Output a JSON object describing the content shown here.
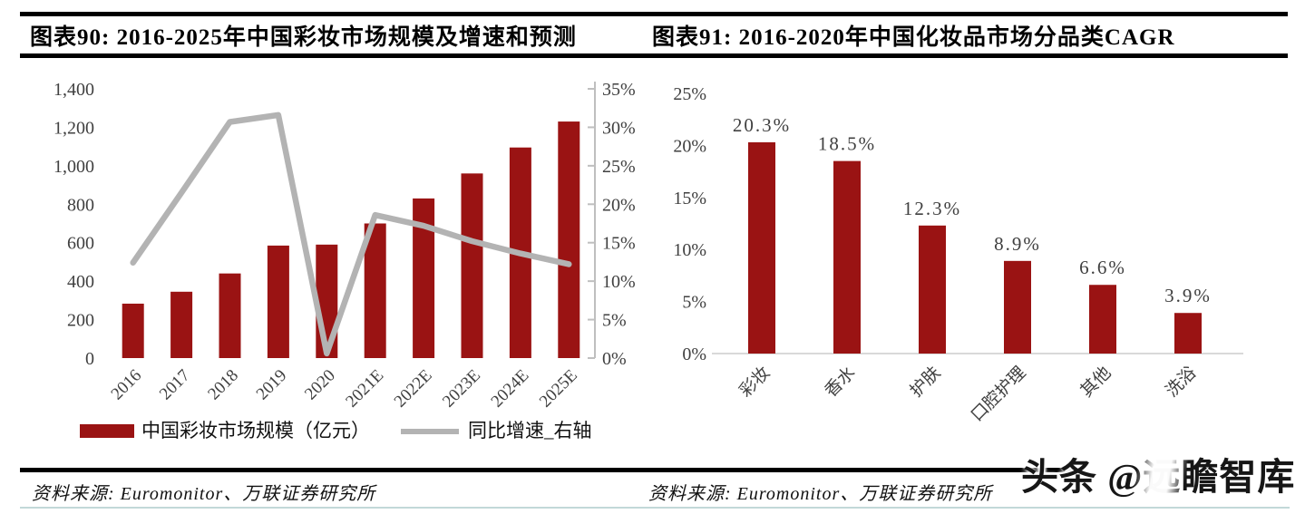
{
  "header": {
    "left_title": "图表90:  2016-2025年中国彩妆市场规模及增速和预测",
    "right_title": "图表91:  2016-2020年中国化妆品市场分品类CAGR"
  },
  "colors": {
    "bar_red": "#9A1313",
    "line_gray": "#B3B3B3",
    "axis_text": "#404040",
    "axis_line_gray": "#BFBFBF",
    "baseline_gray": "#D9D9D9",
    "divider_black": "#000000",
    "teal_rule": "#AECBCB"
  },
  "chart_data": [
    {
      "type": "bar+line combo",
      "title": "图表90: 2016-2025年中国彩妆市场规模及增速和预测",
      "categories": [
        "2016",
        "2017",
        "2018",
        "2019",
        "2020",
        "2021E",
        "2022E",
        "2023E",
        "2024E",
        "2025E"
      ],
      "series": [
        {
          "name": "中国彩妆市场规模（亿元）",
          "type": "bar",
          "axis": "left",
          "values": [
            283,
            345,
            440,
            585,
            590,
            700,
            830,
            960,
            1095,
            1230
          ]
        },
        {
          "name": "同比增速_右轴",
          "type": "line",
          "axis": "right",
          "values": [
            12.4,
            21.5,
            30.7,
            31.6,
            0.6,
            18.6,
            17.2,
            15.2,
            13.6,
            12.2
          ]
        }
      ],
      "left_axis": {
        "min": 0,
        "max": 1400,
        "tick_step": 200,
        "ticks": [
          "0",
          "200",
          "400",
          "600",
          "800",
          "1,000",
          "1,200",
          "1,400"
        ]
      },
      "right_axis": {
        "min": 0,
        "max": 35,
        "tick_step": 5,
        "ticks": [
          "0%",
          "5%",
          "10%",
          "15%",
          "20%",
          "25%",
          "30%",
          "35%"
        ]
      },
      "grid": false,
      "legend_position": "bottom"
    },
    {
      "type": "bar",
      "title": "图表91: 2016-2020年中国化妆品市场分品类CAGR",
      "categories": [
        "彩妆",
        "香水",
        "护肤",
        "口腔护理",
        "其他",
        "洗浴"
      ],
      "values": [
        20.3,
        18.5,
        12.3,
        8.9,
        6.6,
        3.9
      ],
      "data_labels": [
        "20.3%",
        "18.5%",
        "12.3%",
        "8.9%",
        "6.6%",
        "3.9%"
      ],
      "y_axis": {
        "min": 0,
        "max": 25,
        "tick_step": 5,
        "ticks": [
          "0%",
          "5%",
          "10%",
          "15%",
          "20%",
          "25%"
        ]
      },
      "grid": false,
      "legend_position": "none"
    }
  ],
  "footer": {
    "left_source": "资料来源: Euromonitor、万联证券研究所",
    "right_source": "资料来源: Euromonitor、万联证券研究所"
  },
  "watermark": {
    "text": "头条 @远瞻智库"
  }
}
